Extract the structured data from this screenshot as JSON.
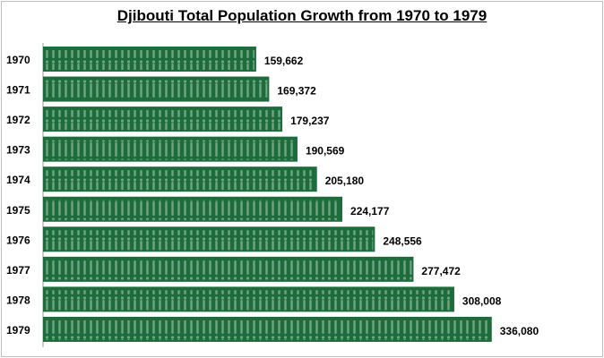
{
  "chart_data": {
    "type": "bar",
    "orientation": "horizontal",
    "title": "Djibouti Total Population Growth from 1970 to 1979",
    "categories": [
      "1970",
      "1971",
      "1972",
      "1973",
      "1974",
      "1975",
      "1976",
      "1977",
      "1978",
      "1979"
    ],
    "values": [
      159662,
      169372,
      179237,
      190569,
      205180,
      224177,
      248556,
      277472,
      308008,
      336080
    ],
    "data_labels": [
      "159,662",
      "169,372",
      "179,237",
      "190,569",
      "205,180",
      "224,177",
      "248,556",
      "277,472",
      "308,008",
      "336,080"
    ],
    "xlim": [
      0,
      400000
    ],
    "grid": false,
    "legend": "none",
    "colors": {
      "bar": "#1e6b3c",
      "figure_pattern": "#6fa583"
    }
  }
}
